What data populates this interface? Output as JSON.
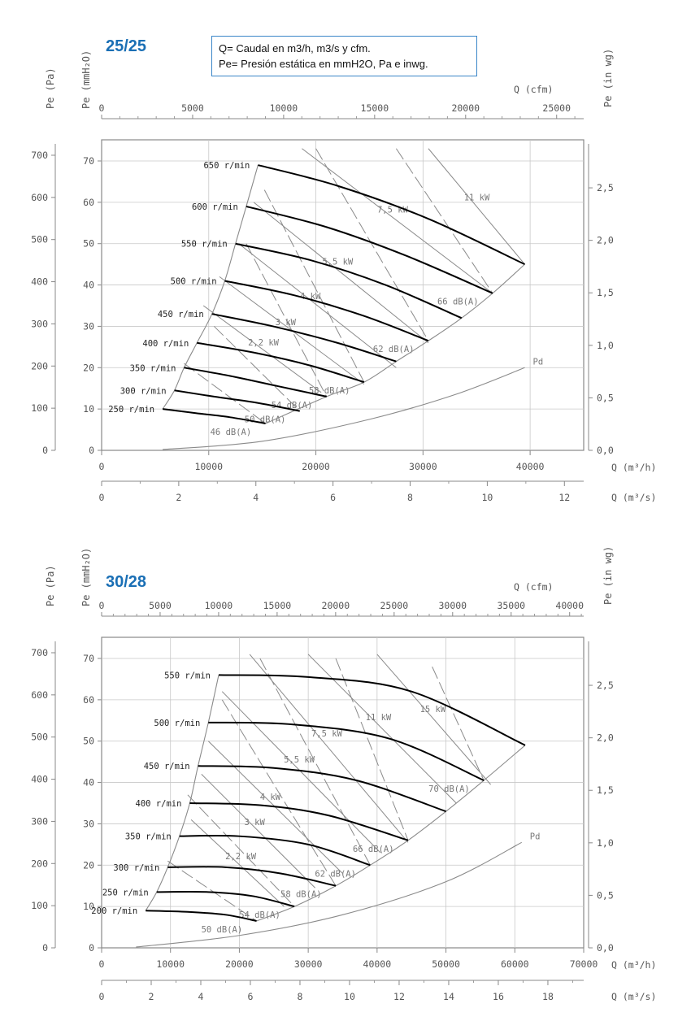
{
  "legend": {
    "line1": "Q= Caudal en m3/h, m3/s y cfm.",
    "line2": "Pe= Presión estática en mmH2O, Pa e inwg."
  },
  "colors": {
    "title": "#1a6fb5",
    "curves": "#000000",
    "construction": "#8a8a8a",
    "grid": "#c8c8c8"
  },
  "chart_data": [
    {
      "type": "line",
      "title": "25/25",
      "axis_labels": {
        "pe_pa": "Pe  (Pa)",
        "pe_mmh2o": "Pe  (mmH₂O)",
        "pe_inwg": "Pe  (in  wg)",
        "q_cfm": "Q  (cfm)",
        "q_m3h": "Q  (m³/h)",
        "q_m3s": "Q  (m³/s)"
      },
      "xlim_m3h": [
        0,
        45000
      ],
      "ylim_mmh2o": [
        0,
        75
      ],
      "ticks": {
        "m3h": [
          "0",
          "10000",
          "20000",
          "30000",
          "40000"
        ],
        "m3s": [
          "0",
          "2",
          "4",
          "6",
          "8",
          "10",
          "12"
        ],
        "cfm": [
          "0",
          "5000",
          "10000",
          "15000",
          "20000",
          "25000"
        ],
        "pa": [
          "0",
          "100",
          "200",
          "300",
          "400",
          "500",
          "600",
          "700"
        ],
        "mmh2o": [
          "0",
          "10",
          "20",
          "30",
          "40",
          "50",
          "60",
          "70"
        ],
        "inwg": [
          "0,0",
          "0,5",
          "1,0",
          "1,5",
          "2,0",
          "2,5"
        ]
      },
      "speed_curves": [
        {
          "label": "650 r/min",
          "points": [
            [
              14600,
              69
            ],
            [
              22000,
              64
            ],
            [
              30500,
              56
            ],
            [
              39500,
              45
            ]
          ]
        },
        {
          "label": "600 r/min",
          "points": [
            [
              13500,
              59
            ],
            [
              21000,
              54
            ],
            [
              28500,
              47
            ],
            [
              36500,
              38
            ]
          ]
        },
        {
          "label": "550 r/min",
          "points": [
            [
              12500,
              50
            ],
            [
              19500,
              46
            ],
            [
              26500,
              40
            ],
            [
              33600,
              32
            ]
          ]
        },
        {
          "label": "500 r/min",
          "points": [
            [
              11500,
              41
            ],
            [
              18000,
              37.5
            ],
            [
              24500,
              32.5
            ],
            [
              30500,
              26.5
            ]
          ]
        },
        {
          "label": "450 r/min",
          "points": [
            [
              10300,
              33
            ],
            [
              16000,
              30
            ],
            [
              22000,
              26
            ],
            [
              27500,
              21.5
            ]
          ]
        },
        {
          "label": "400 r/min",
          "points": [
            [
              8900,
              26
            ],
            [
              14500,
              23.5
            ],
            [
              19500,
              20.5
            ],
            [
              24500,
              16.5
            ]
          ]
        },
        {
          "label": "350 r/min",
          "points": [
            [
              7700,
              20
            ],
            [
              12000,
              18
            ],
            [
              16500,
              15.5
            ],
            [
              21000,
              13
            ]
          ]
        },
        {
          "label": "300 r/min",
          "points": [
            [
              6800,
              14.5
            ],
            [
              10500,
              13
            ],
            [
              14500,
              11.5
            ],
            [
              18500,
              9.5
            ]
          ]
        },
        {
          "label": "250 r/min",
          "points": [
            [
              5700,
              10
            ],
            [
              8800,
              9
            ],
            [
              12000,
              8
            ],
            [
              15300,
              6.5
            ]
          ]
        }
      ],
      "efficiency_line": [
        [
          5700,
          10
        ],
        [
          6800,
          14.5
        ],
        [
          7700,
          20
        ],
        [
          8900,
          26
        ],
        [
          10300,
          33
        ],
        [
          11500,
          41
        ],
        [
          12500,
          50
        ],
        [
          13500,
          59
        ],
        [
          14600,
          69
        ]
      ],
      "system_curve": [
        [
          15300,
          6.5
        ],
        [
          21000,
          13
        ],
        [
          24500,
          16.5
        ],
        [
          27500,
          21.5
        ],
        [
          30500,
          26.5
        ],
        [
          33600,
          32
        ],
        [
          36500,
          38
        ],
        [
          39500,
          45
        ]
      ],
      "power_lines": [
        {
          "label": "2,2  kW",
          "from": [
            9500,
            35
          ],
          "to": [
            20500,
            14
          ]
        },
        {
          "label": "3  kW",
          "from": [
            11000,
            42
          ],
          "to": [
            24500,
            16
          ]
        },
        {
          "label": "4  kW",
          "from": [
            12800,
            50
          ],
          "to": [
            27500,
            20
          ]
        },
        {
          "label": "5,5  kW",
          "from": [
            14200,
            60
          ],
          "to": [
            30500,
            26
          ]
        },
        {
          "label": "7,5  kW",
          "from": [
            18700,
            73
          ],
          "to": [
            36500,
            38
          ]
        },
        {
          "label": "11  kW",
          "from": [
            30500,
            73
          ],
          "to": [
            39500,
            45
          ]
        }
      ],
      "noise_lines": [
        {
          "label": "46 dB(A)",
          "from": [
            7700,
            21
          ],
          "to": [
            15300,
            6.5
          ]
        },
        {
          "label": "50 dB(A)",
          "from": [
            10500,
            30
          ],
          "to": [
            18500,
            9.5
          ]
        },
        {
          "label": "54 dB(A)",
          "from": [
            13500,
            50
          ],
          "to": [
            21000,
            13
          ]
        },
        {
          "label": "58 dB(A)",
          "from": [
            15200,
            63
          ],
          "to": [
            24500,
            16.5
          ]
        },
        {
          "label": "62 dB(A)",
          "from": [
            20000,
            73
          ],
          "to": [
            30500,
            26.5
          ]
        },
        {
          "label": "66 dB(A)",
          "from": [
            27500,
            73
          ],
          "to": [
            36500,
            38
          ]
        }
      ],
      "pd_curve": {
        "label": "Pd",
        "points": [
          [
            5700,
            0.2
          ],
          [
            15000,
            2.2
          ],
          [
            25000,
            7.5
          ],
          [
            33000,
            13.5
          ],
          [
            39500,
            20
          ]
        ]
      }
    },
    {
      "type": "line",
      "title": "30/28",
      "axis_labels": {
        "pe_pa": "Pe  (Pa)",
        "pe_mmh2o": "Pe  (mmH₂O)",
        "pe_inwg": "Pe  (in  wg)",
        "q_cfm": "Q  (cfm)",
        "q_m3h": "Q  (m³/h)",
        "q_m3s": "Q  (m³/s)"
      },
      "xlim_m3h": [
        0,
        70000
      ],
      "ylim_mmh2o": [
        0,
        75
      ],
      "ticks": {
        "m3h": [
          "0",
          "10000",
          "20000",
          "30000",
          "40000",
          "50000",
          "60000",
          "70000"
        ],
        "m3s": [
          "0",
          "2",
          "4",
          "6",
          "8",
          "10",
          "12",
          "14",
          "16",
          "18"
        ],
        "cfm": [
          "0",
          "5000",
          "10000",
          "15000",
          "20000",
          "25000",
          "30000",
          "35000",
          "40000"
        ],
        "pa": [
          "0",
          "100",
          "200",
          "300",
          "400",
          "500",
          "600",
          "700"
        ],
        "mmh2o": [
          "0",
          "10",
          "20",
          "30",
          "40",
          "50",
          "60",
          "70"
        ],
        "inwg": [
          "0,0",
          "0,5",
          "1,0",
          "1,5",
          "2,0",
          "2,5"
        ]
      },
      "speed_curves": [
        {
          "label": "550 r/min",
          "points": [
            [
              17000,
              66
            ],
            [
              30000,
              65.5
            ],
            [
              45000,
              62
            ],
            [
              61500,
              49
            ]
          ]
        },
        {
          "label": "500 r/min",
          "points": [
            [
              15500,
              54.5
            ],
            [
              28000,
              54
            ],
            [
              42000,
              50.5
            ],
            [
              55500,
              40.5
            ]
          ]
        },
        {
          "label": "450 r/min",
          "points": [
            [
              14000,
              44
            ],
            [
              25000,
              43.5
            ],
            [
              37000,
              40.5
            ],
            [
              50000,
              33
            ]
          ]
        },
        {
          "label": "400 r/min",
          "points": [
            [
              12800,
              35
            ],
            [
              23000,
              34.5
            ],
            [
              33000,
              32
            ],
            [
              44500,
              26
            ]
          ]
        },
        {
          "label": "350 r/min",
          "points": [
            [
              11300,
              27
            ],
            [
              20000,
              27
            ],
            [
              30000,
              25
            ],
            [
              39000,
              20
            ]
          ]
        },
        {
          "label": "300 r/min",
          "points": [
            [
              9600,
              19.5
            ],
            [
              18000,
              19.5
            ],
            [
              26000,
              18
            ],
            [
              34000,
              15
            ]
          ]
        },
        {
          "label": "250 r/min",
          "points": [
            [
              8000,
              13.5
            ],
            [
              15500,
              13.5
            ],
            [
              22000,
              12.5
            ],
            [
              28000,
              10
            ]
          ]
        },
        {
          "label": "200 r/min",
          "points": [
            [
              6400,
              9
            ],
            [
              12500,
              8.7
            ],
            [
              18000,
              8
            ],
            [
              22500,
              6.5
            ]
          ]
        }
      ],
      "efficiency_line": [
        [
          6400,
          9
        ],
        [
          8000,
          13.5
        ],
        [
          9600,
          19.5
        ],
        [
          11300,
          27
        ],
        [
          12800,
          35
        ],
        [
          14000,
          44
        ],
        [
          15500,
          54.5
        ],
        [
          17000,
          66
        ]
      ],
      "system_curve": [
        [
          22500,
          6.5
        ],
        [
          28000,
          10
        ],
        [
          34000,
          15
        ],
        [
          39000,
          20
        ],
        [
          44500,
          26
        ],
        [
          50000,
          33
        ],
        [
          55500,
          40.5
        ],
        [
          61500,
          49
        ]
      ],
      "power_lines": [
        {
          "label": "2,2  kW",
          "from": [
            13000,
            31
          ],
          "to": [
            26500,
            10
          ]
        },
        {
          "label": "3  kW",
          "from": [
            14500,
            42
          ],
          "to": [
            31000,
            14.5
          ]
        },
        {
          "label": "4  kW",
          "from": [
            15500,
            50
          ],
          "to": [
            35000,
            18
          ]
        },
        {
          "label": "5,5  kW",
          "from": [
            17500,
            62
          ],
          "to": [
            40500,
            23
          ]
        },
        {
          "label": "7,5  kW",
          "from": [
            21500,
            71
          ],
          "to": [
            44500,
            25.5
          ]
        },
        {
          "label": "11  kW",
          "from": [
            30000,
            71
          ],
          "to": [
            51500,
            35
          ]
        },
        {
          "label": "15  kW",
          "from": [
            40000,
            71
          ],
          "to": [
            56500,
            39.5
          ]
        }
      ],
      "noise_lines": [
        {
          "label": "50 dB(A)",
          "from": [
            9600,
            21
          ],
          "to": [
            22500,
            6.5
          ]
        },
        {
          "label": "54 dB(A)",
          "from": [
            12500,
            37
          ],
          "to": [
            28000,
            10
          ]
        },
        {
          "label": "58 dB(A)",
          "from": [
            17500,
            60
          ],
          "to": [
            34000,
            15
          ]
        },
        {
          "label": "62 dB(A)",
          "from": [
            23000,
            70
          ],
          "to": [
            39000,
            20
          ]
        },
        {
          "label": "66 dB(A)",
          "from": [
            34000,
            70
          ],
          "to": [
            44500,
            26
          ]
        },
        {
          "label": "70 dB(A)",
          "from": [
            48000,
            68
          ],
          "to": [
            55500,
            40.5
          ]
        }
      ],
      "pd_curve": {
        "label": "Pd",
        "points": [
          [
            5000,
            0.2
          ],
          [
            20000,
            3
          ],
          [
            35000,
            8
          ],
          [
            50000,
            16
          ],
          [
            61000,
            25.5
          ]
        ]
      }
    }
  ]
}
